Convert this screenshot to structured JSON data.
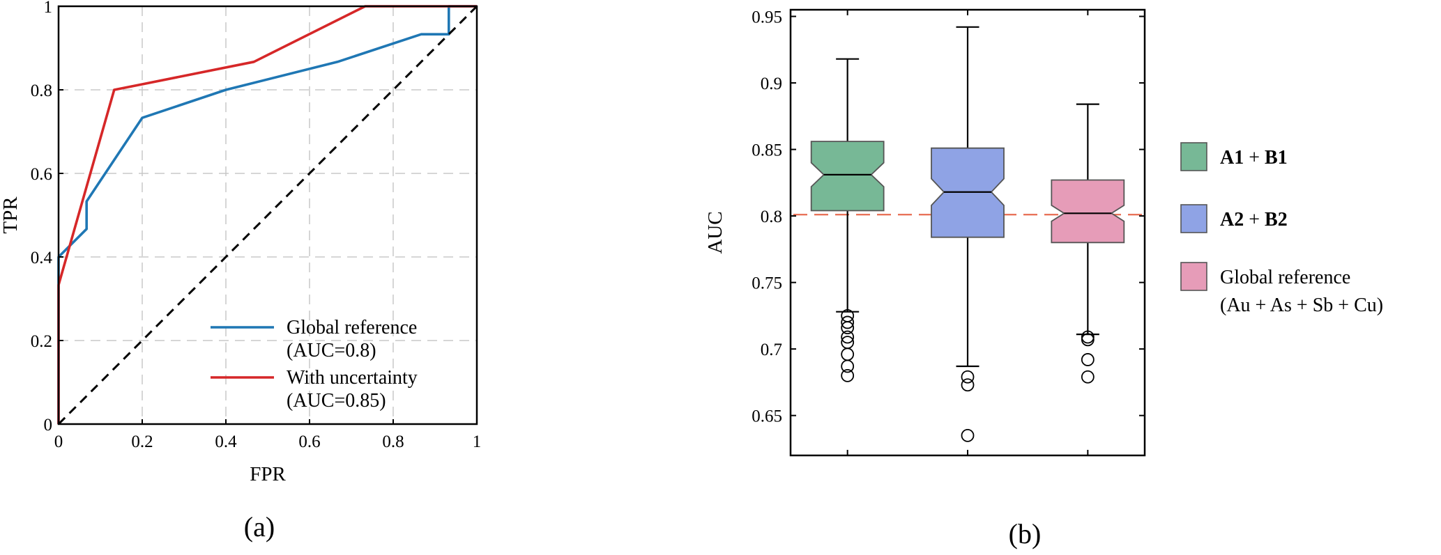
{
  "figure": {
    "panel_labels": [
      "(a)",
      "(b)"
    ]
  },
  "chart_data": [
    {
      "type": "line",
      "xlabel": "FPR",
      "ylabel": "TPR",
      "xlim": [
        0,
        1
      ],
      "ylim": [
        0,
        1
      ],
      "xticks": [
        0,
        0.2,
        0.4,
        0.6,
        0.8,
        1
      ],
      "yticks": [
        0,
        0.2,
        0.4,
        0.6,
        0.8,
        1
      ],
      "xtick_labels": [
        "0",
        "0.2",
        "0.4",
        "0.6",
        "0.8",
        "1"
      ],
      "ytick_labels": [
        "0",
        "0.2",
        "0.4",
        "0.6",
        "0.8",
        "1"
      ],
      "grid": true,
      "legend_position": "bottom-right",
      "series": [
        {
          "name": "Global reference (AUC=0.8)",
          "legend_lines": [
            "Global reference",
            "(AUC=0.8)"
          ],
          "color": "#1f77b4",
          "x": [
            0,
            0,
            0.067,
            0.067,
            0.2,
            0.4,
            0.667,
            0.867,
            0.933,
            0.933,
            1
          ],
          "y": [
            0,
            0.4,
            0.467,
            0.533,
            0.733,
            0.8,
            0.867,
            0.933,
            0.933,
            1,
            1
          ]
        },
        {
          "name": "With uncertainty (AUC=0.85)",
          "legend_lines": [
            "With uncertainty",
            "(AUC=0.85)"
          ],
          "color": "#d62728",
          "x": [
            0,
            0,
            0.133,
            0.2,
            0.467,
            0.733,
            1
          ],
          "y": [
            0,
            0.333,
            0.8,
            0.8133,
            0.867,
            1,
            1
          ]
        },
        {
          "name": "",
          "style": "dashed",
          "color": "#000000",
          "x": [
            0,
            1
          ],
          "y": [
            0,
            1
          ]
        }
      ]
    },
    {
      "type": "box",
      "ylabel": "AUC",
      "ylim": [
        0.62,
        0.955
      ],
      "yticks": [
        0.65,
        0.7,
        0.75,
        0.8,
        0.85,
        0.9,
        0.95
      ],
      "ytick_labels": [
        "0.65",
        "0.7",
        "0.75",
        "0.8",
        "0.85",
        "0.9",
        "0.95"
      ],
      "notched": true,
      "reference_line": {
        "y": 0.801,
        "color": "#e8735a",
        "style": "dashed"
      },
      "legend_position": "right",
      "series": [
        {
          "name": "A1 + B1",
          "legend_parts": [
            {
              "text": "A1",
              "bold": true
            },
            {
              "text": " + ",
              "bold": false
            },
            {
              "text": "B1",
              "bold": true
            }
          ],
          "color": "#77b896",
          "whisker_low": 0.728,
          "q1": 0.804,
          "median": 0.831,
          "q3": 0.856,
          "whisker_high": 0.918,
          "notch_low": 0.822,
          "notch_high": 0.84,
          "outliers": [
            0.725,
            0.72,
            0.716,
            0.709,
            0.705,
            0.696,
            0.687,
            0.68
          ]
        },
        {
          "name": "A2 + B2",
          "legend_parts": [
            {
              "text": "A2",
              "bold": true
            },
            {
              "text": " + ",
              "bold": false
            },
            {
              "text": "B2",
              "bold": true
            }
          ],
          "color": "#8fa3e5",
          "whisker_low": 0.687,
          "q1": 0.784,
          "median": 0.818,
          "q3": 0.851,
          "whisker_high": 0.942,
          "notch_low": 0.808,
          "notch_high": 0.828,
          "outliers": [
            0.679,
            0.673,
            0.635
          ]
        },
        {
          "name": "Global reference (Au + As + Sb + Cu)",
          "legend_lines": [
            "Global reference",
            "(Au + As + Sb + Cu)"
          ],
          "color": "#e69cb8",
          "whisker_low": 0.711,
          "q1": 0.78,
          "median": 0.802,
          "q3": 0.827,
          "whisker_high": 0.884,
          "notch_low": 0.796,
          "notch_high": 0.808,
          "outliers": [
            0.709,
            0.707,
            0.692,
            0.679
          ]
        }
      ]
    }
  ]
}
